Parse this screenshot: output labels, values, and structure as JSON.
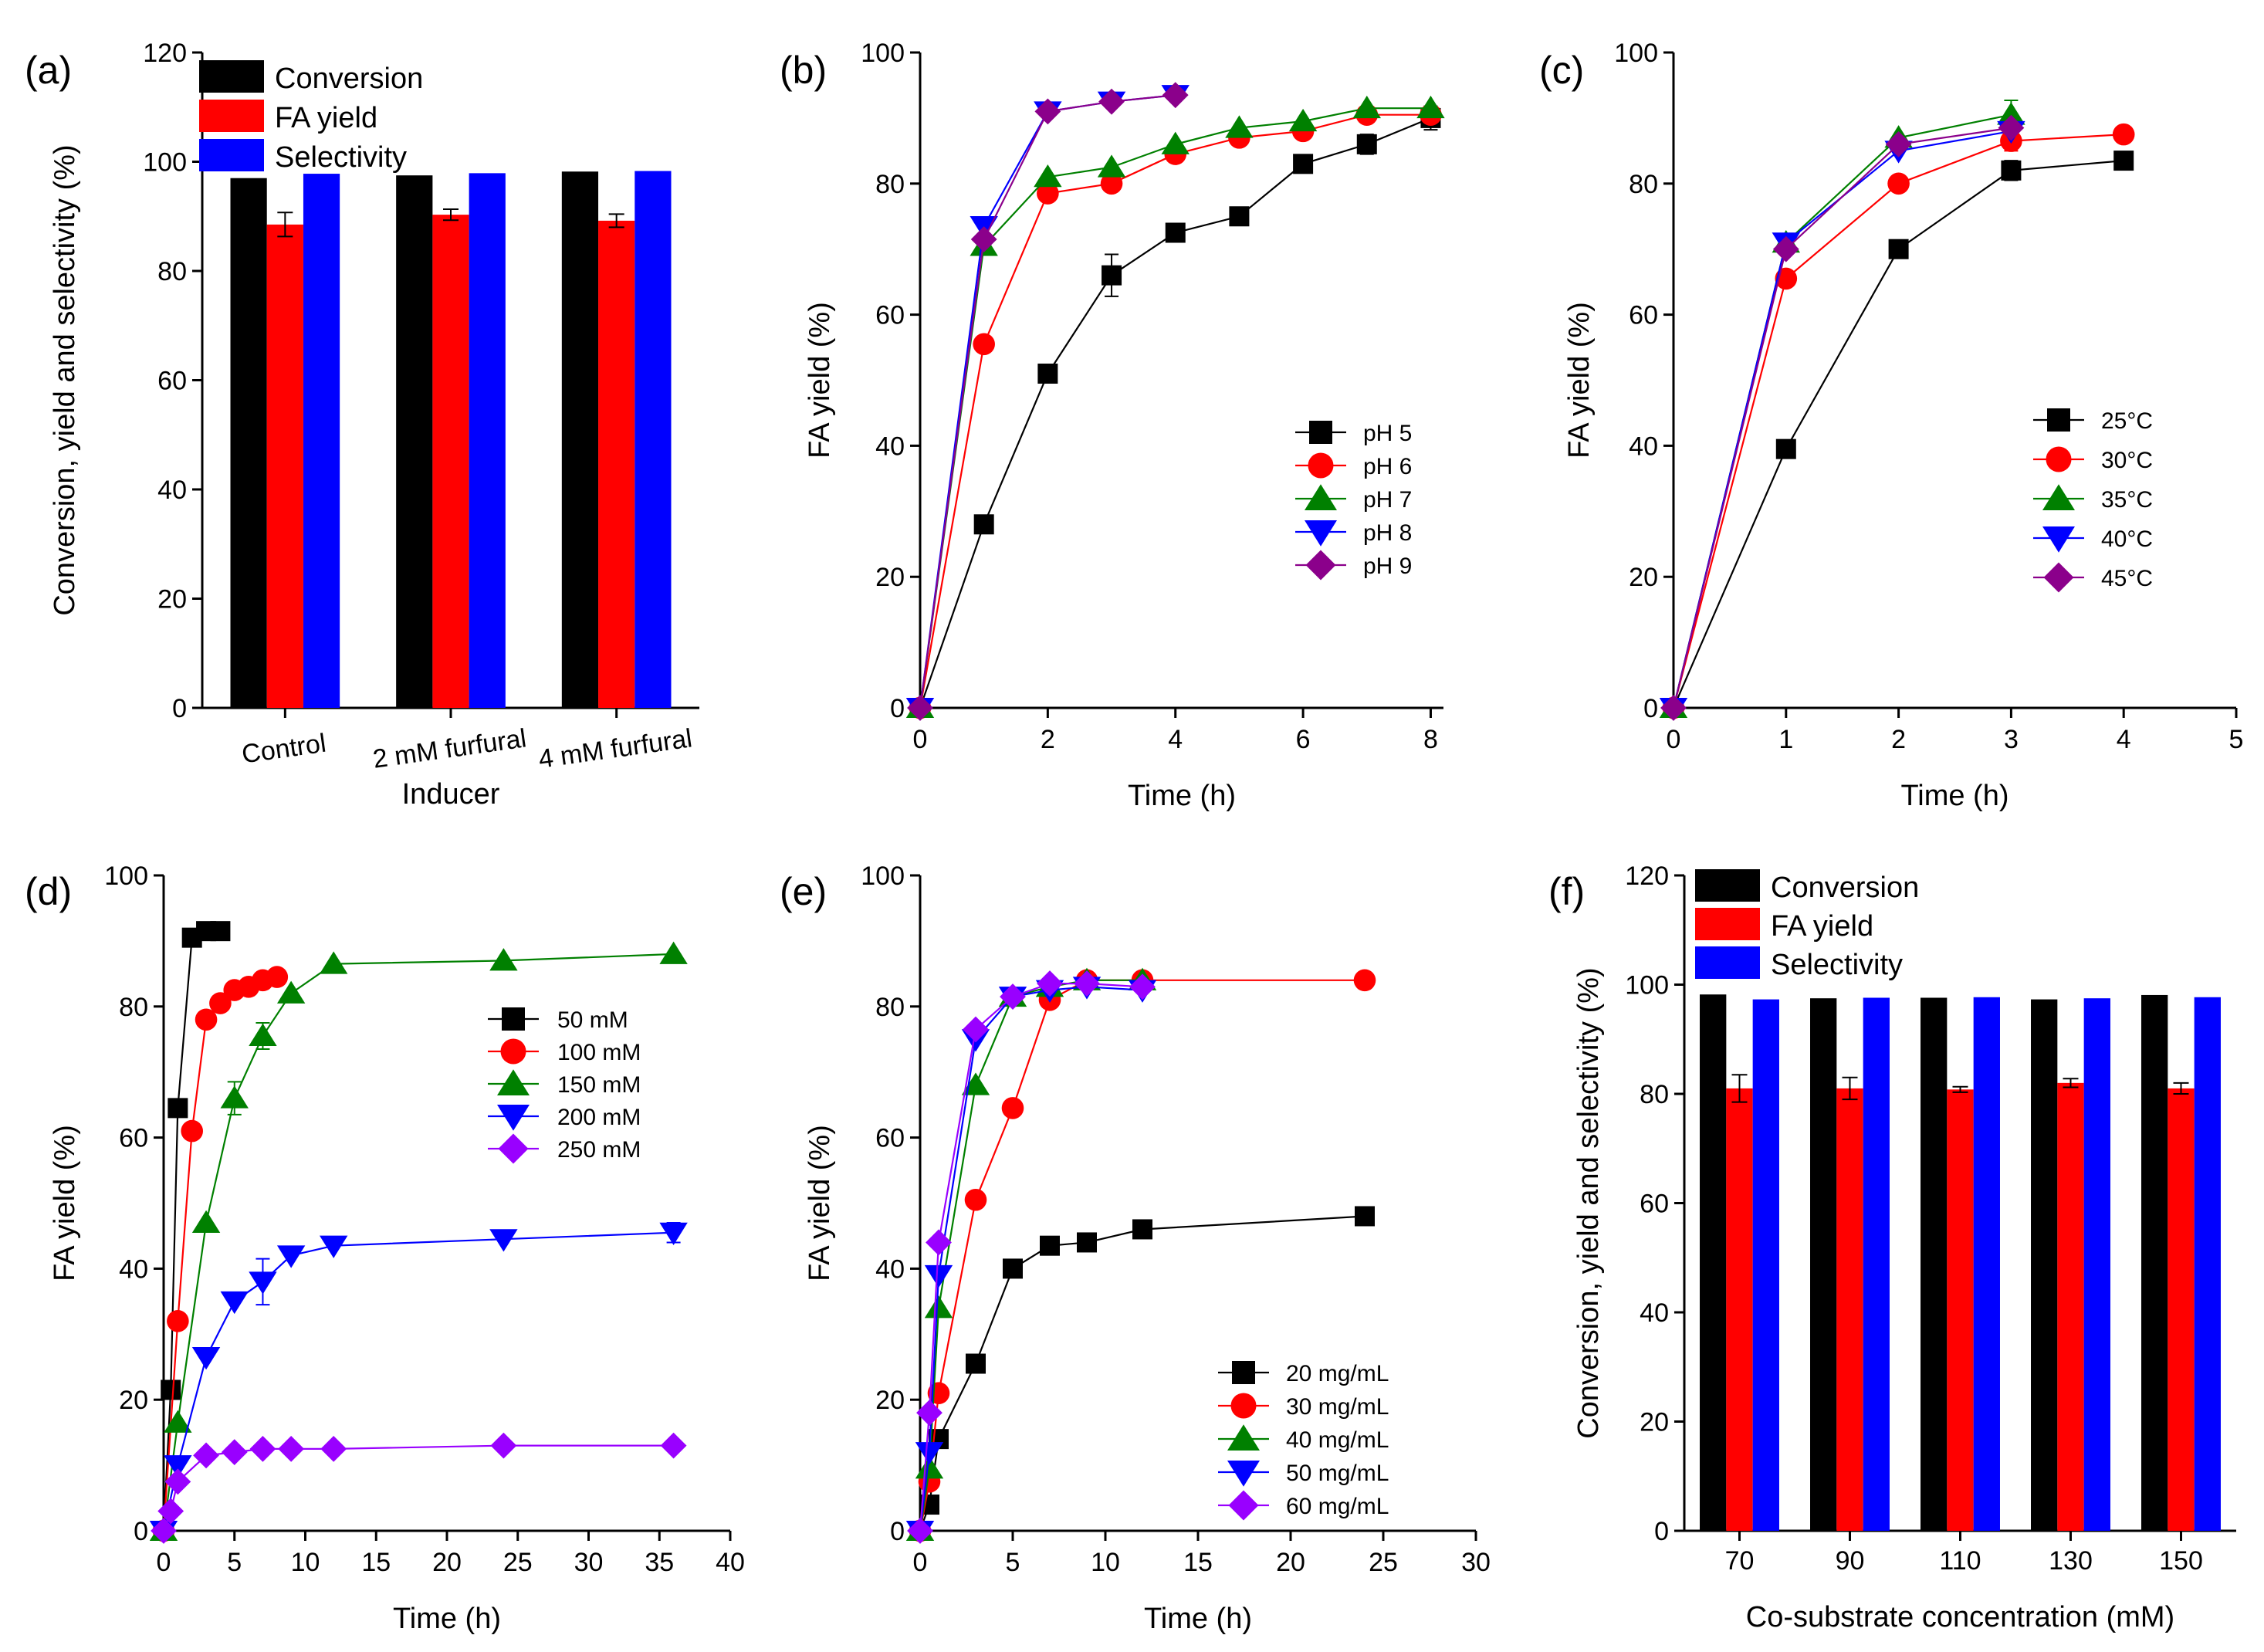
{
  "chart_data": [
    {
      "id": "a",
      "panel_label": "(a)",
      "type": "bar",
      "xlabel": "Inducer",
      "ylabel": "Conversion, yield and selectivity (%)",
      "categories": [
        "Control",
        "2 mM furfural",
        "4 mM furfural"
      ],
      "ylim": [
        0,
        120
      ],
      "yticks": [
        0,
        20,
        40,
        60,
        80,
        100,
        120
      ],
      "series": [
        {
          "name": "Conversion",
          "color": "#000000",
          "values": [
            97.0,
            97.5,
            98.2
          ],
          "errors": [
            0,
            0,
            0
          ]
        },
        {
          "name": "FA yield",
          "color": "#ff0000",
          "values": [
            88.5,
            90.3,
            89.2
          ],
          "errors": [
            2.2,
            1.0,
            1.2
          ]
        },
        {
          "name": "Selectivity",
          "color": "#0000ff",
          "values": [
            97.8,
            97.9,
            98.3
          ],
          "errors": [
            0,
            0,
            0
          ]
        }
      ]
    },
    {
      "id": "b",
      "panel_label": "(b)",
      "type": "line",
      "xlabel": "Time (h)",
      "ylabel": "FA yield (%)",
      "xlim": [
        0,
        8.2
      ],
      "ylim": [
        0,
        100
      ],
      "xticks": [
        0,
        2,
        4,
        6,
        8
      ],
      "yticks": [
        0,
        20,
        40,
        60,
        80,
        100
      ],
      "series": [
        {
          "name": "pH 5",
          "marker": "square",
          "color": "#000000",
          "x": [
            0,
            1,
            2,
            3,
            4,
            5,
            6,
            7,
            8
          ],
          "y": [
            0,
            28,
            51,
            66,
            72.5,
            75,
            83,
            86,
            90
          ],
          "errors": [
            0,
            0,
            0,
            3.2,
            0,
            0,
            0,
            1.5,
            1.8
          ]
        },
        {
          "name": "pH 6",
          "marker": "circle",
          "color": "#ff0000",
          "x": [
            0,
            1,
            2,
            3,
            4,
            5,
            6,
            7,
            8
          ],
          "y": [
            0,
            55.5,
            78.5,
            80,
            84.5,
            87,
            88,
            90.5,
            90.5
          ],
          "errors": [
            0,
            0,
            0,
            0,
            0,
            0,
            0,
            0,
            0
          ]
        },
        {
          "name": "pH 7",
          "marker": "triangle-up",
          "color": "#008000",
          "x": [
            0,
            1,
            2,
            3,
            4,
            5,
            6,
            7,
            8
          ],
          "y": [
            0,
            70.5,
            81,
            82.5,
            86,
            88.5,
            89.5,
            91.5,
            91.5
          ],
          "errors": [
            0,
            0,
            0,
            0,
            0,
            0,
            0,
            0,
            0
          ]
        },
        {
          "name": "pH 8",
          "marker": "triangle-down",
          "color": "#0000ff",
          "x": [
            0,
            1,
            2,
            3,
            4
          ],
          "y": [
            0,
            73.5,
            91,
            92.5,
            93.5
          ],
          "errors": [
            0,
            1.2,
            0,
            0,
            0
          ]
        },
        {
          "name": "pH 9",
          "marker": "diamond",
          "color": "#8b008b",
          "x": [
            0,
            1,
            2,
            3,
            4
          ],
          "y": [
            0,
            71.5,
            91,
            92.5,
            93.5
          ],
          "errors": [
            0,
            0,
            0,
            0,
            0
          ]
        }
      ]
    },
    {
      "id": "c",
      "panel_label": "(c)",
      "type": "line",
      "xlabel": "Time (h)",
      "ylabel": "FA yield (%)",
      "xlim": [
        0,
        5
      ],
      "ylim": [
        0,
        100
      ],
      "xticks": [
        0,
        1,
        2,
        3,
        4,
        5
      ],
      "yticks": [
        0,
        20,
        40,
        60,
        80,
        100
      ],
      "series": [
        {
          "name": "25°C",
          "marker": "square",
          "color": "#000000",
          "x": [
            0,
            1,
            2,
            3,
            4
          ],
          "y": [
            0,
            39.5,
            70,
            82,
            83.5
          ],
          "errors": [
            0,
            0,
            0,
            1.5,
            0
          ]
        },
        {
          "name": "30°C",
          "marker": "circle",
          "color": "#ff0000",
          "x": [
            0,
            1,
            2,
            3,
            4
          ],
          "y": [
            0,
            65.5,
            80,
            86.5,
            87.5
          ],
          "errors": [
            0,
            0,
            0,
            1.5,
            0
          ]
        },
        {
          "name": "35°C",
          "marker": "triangle-up",
          "color": "#008000",
          "x": [
            0,
            1,
            2,
            3
          ],
          "y": [
            0,
            71,
            87,
            90.5
          ],
          "errors": [
            0,
            0,
            0,
            2.2
          ]
        },
        {
          "name": "40°C",
          "marker": "triangle-down",
          "color": "#0000ff",
          "x": [
            0,
            1,
            2,
            3
          ],
          "y": [
            0,
            71,
            85,
            88
          ],
          "errors": [
            0,
            0,
            0,
            0
          ]
        },
        {
          "name": "45°C",
          "marker": "diamond",
          "color": "#8b008b",
          "x": [
            0,
            1,
            2,
            3
          ],
          "y": [
            0,
            70,
            86,
            88.5
          ],
          "errors": [
            0,
            0,
            0,
            0
          ]
        }
      ]
    },
    {
      "id": "d",
      "panel_label": "(d)",
      "type": "line",
      "xlabel": "Time (h)",
      "ylabel": "FA yield (%)",
      "xlim": [
        0,
        40
      ],
      "ylim": [
        0,
        100
      ],
      "xticks": [
        0,
        5,
        10,
        15,
        20,
        25,
        30,
        35,
        40
      ],
      "yticks": [
        0,
        20,
        40,
        60,
        80,
        100
      ],
      "series": [
        {
          "name": "50 mM",
          "marker": "square",
          "color": "#000000",
          "x": [
            0,
            0.5,
            1,
            2,
            3,
            4
          ],
          "y": [
            0,
            21.5,
            64.5,
            90.5,
            91.5,
            91.5
          ],
          "errors": [
            0,
            0,
            0,
            0,
            0,
            0
          ]
        },
        {
          "name": "100 mM",
          "marker": "circle",
          "color": "#ff0000",
          "x": [
            0,
            1,
            2,
            3,
            4,
            5,
            6,
            7,
            8
          ],
          "y": [
            0,
            32,
            61,
            78,
            80.5,
            82.5,
            83,
            84,
            84.5
          ],
          "errors": [
            0,
            0,
            0,
            0,
            0,
            0,
            0,
            0,
            0
          ]
        },
        {
          "name": "150 mM",
          "marker": "triangle-up",
          "color": "#008000",
          "x": [
            0,
            1,
            3,
            5,
            7,
            9,
            12,
            24,
            36
          ],
          "y": [
            0,
            16.5,
            47,
            66,
            75.5,
            82,
            86.5,
            87,
            88
          ],
          "errors": [
            0,
            0,
            0,
            2.5,
            2.0,
            0,
            0,
            0,
            0
          ]
        },
        {
          "name": "200 mM",
          "marker": "triangle-down",
          "color": "#0000ff",
          "x": [
            0,
            1,
            3,
            5,
            7,
            9,
            12,
            24,
            36
          ],
          "y": [
            0,
            10,
            26.5,
            35,
            38,
            42,
            43.5,
            44.5,
            45.5
          ],
          "errors": [
            0,
            0,
            0,
            0,
            3.5,
            0,
            0,
            0,
            1.5
          ]
        },
        {
          "name": "250 mM",
          "marker": "diamond",
          "color": "#9900ff",
          "x": [
            0,
            0.5,
            1,
            3,
            5,
            7,
            9,
            12,
            24,
            36
          ],
          "y": [
            0,
            3,
            7.5,
            11.5,
            12,
            12.5,
            12.5,
            12.5,
            13,
            13
          ],
          "errors": [
            0,
            0,
            0,
            0,
            0,
            0,
            0,
            0,
            0,
            0
          ]
        }
      ]
    },
    {
      "id": "e",
      "panel_label": "(e)",
      "type": "line",
      "xlabel": "Time (h)",
      "ylabel": "FA yield (%)",
      "xlim": [
        0,
        30
      ],
      "ylim": [
        0,
        100
      ],
      "xticks": [
        0,
        5,
        10,
        15,
        20,
        25,
        30
      ],
      "yticks": [
        0,
        20,
        40,
        60,
        80,
        100
      ],
      "series": [
        {
          "name": "20 mg/mL",
          "marker": "square",
          "color": "#000000",
          "x": [
            0,
            0.5,
            1,
            3,
            5,
            7,
            9,
            12,
            24
          ],
          "y": [
            0,
            4,
            14,
            25.5,
            40,
            43.5,
            44,
            46,
            48
          ],
          "errors": [
            0,
            0,
            0,
            0,
            0,
            0,
            0,
            0,
            0
          ]
        },
        {
          "name": "30 mg/mL",
          "marker": "circle",
          "color": "#ff0000",
          "x": [
            0,
            0.5,
            1,
            3,
            5,
            7,
            9,
            12,
            24
          ],
          "y": [
            0,
            7.5,
            21,
            50.5,
            64.5,
            81,
            84,
            84,
            84
          ],
          "errors": [
            0,
            0,
            0,
            0,
            0,
            0,
            0,
            0,
            0
          ]
        },
        {
          "name": "40 mg/mL",
          "marker": "triangle-up",
          "color": "#008000",
          "x": [
            0,
            0.5,
            1,
            3,
            5,
            7,
            9,
            12
          ],
          "y": [
            0,
            9.5,
            34,
            68,
            81.5,
            83,
            84,
            84
          ],
          "errors": [
            0,
            0,
            0,
            0,
            0,
            0,
            0,
            0
          ]
        },
        {
          "name": "50 mg/mL",
          "marker": "triangle-down",
          "color": "#0000ff",
          "x": [
            0,
            0.5,
            1,
            3,
            5,
            7,
            9,
            12
          ],
          "y": [
            0,
            12,
            39,
            75,
            81.5,
            82.5,
            83,
            82.5
          ],
          "errors": [
            0,
            0,
            0,
            0,
            0,
            0,
            0,
            0
          ]
        },
        {
          "name": "60 mg/mL",
          "marker": "diamond",
          "color": "#9900ff",
          "x": [
            0,
            0.5,
            1,
            3,
            5,
            7,
            9,
            12
          ],
          "y": [
            0,
            18,
            44,
            76.5,
            81.5,
            83.5,
            83.5,
            83
          ],
          "errors": [
            0,
            0,
            0,
            0,
            0,
            0,
            0,
            0
          ]
        }
      ]
    },
    {
      "id": "f",
      "panel_label": "(f)",
      "type": "bar",
      "xlabel": "Co-substrate concentration (mM)",
      "ylabel": "Conversion, yield and selectivity (%)",
      "categories": [
        "70",
        "90",
        "110",
        "130",
        "150"
      ],
      "ylim": [
        0,
        120
      ],
      "yticks": [
        0,
        20,
        40,
        60,
        80,
        100,
        120
      ],
      "series": [
        {
          "name": "Conversion",
          "color": "#000000",
          "values": [
            98.2,
            97.5,
            97.6,
            97.3,
            98.1
          ],
          "errors": [
            0,
            0,
            0,
            0,
            0
          ]
        },
        {
          "name": "FA yield",
          "color": "#ff0000",
          "values": [
            81.0,
            81.0,
            80.8,
            82.0,
            81.0
          ],
          "errors": [
            2.5,
            2.0,
            0.5,
            0.8,
            1.0
          ]
        },
        {
          "name": "Selectivity",
          "color": "#0000ff",
          "values": [
            97.3,
            97.6,
            97.7,
            97.5,
            97.7
          ],
          "errors": [
            0,
            0,
            0,
            0,
            0
          ]
        }
      ]
    }
  ]
}
